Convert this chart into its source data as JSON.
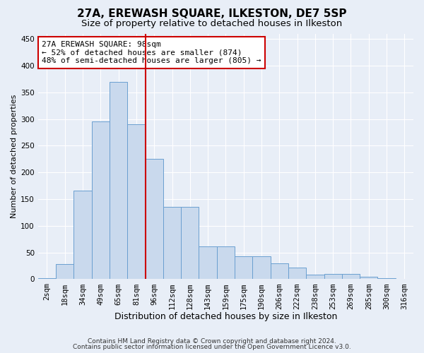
{
  "title1": "27A, EREWASH SQUARE, ILKESTON, DE7 5SP",
  "title2": "Size of property relative to detached houses in Ilkeston",
  "xlabel": "Distribution of detached houses by size in Ilkeston",
  "ylabel": "Number of detached properties",
  "footer1": "Contains HM Land Registry data © Crown copyright and database right 2024.",
  "footer2": "Contains public sector information licensed under the Open Government Licence v3.0.",
  "categories": [
    "2sqm",
    "18sqm",
    "34sqm",
    "49sqm",
    "65sqm",
    "81sqm",
    "96sqm",
    "112sqm",
    "128sqm",
    "143sqm",
    "159sqm",
    "175sqm",
    "190sqm",
    "206sqm",
    "222sqm",
    "238sqm",
    "253sqm",
    "269sqm",
    "285sqm",
    "300sqm",
    "316sqm"
  ],
  "values": [
    2,
    29,
    166,
    295,
    370,
    290,
    225,
    135,
    135,
    62,
    62,
    43,
    43,
    30,
    22,
    8,
    10,
    10,
    5,
    2,
    1
  ],
  "bar_color": "#c9d9ed",
  "bar_edge_color": "#6a9fd0",
  "vline_x_index": 6,
  "vline_color": "#cc0000",
  "annotation_line1": "27A EREWASH SQUARE: 98sqm",
  "annotation_line2": "← 52% of detached houses are smaller (874)",
  "annotation_line3": "48% of semi-detached houses are larger (805) →",
  "ylim": [
    0,
    460
  ],
  "yticks": [
    0,
    50,
    100,
    150,
    200,
    250,
    300,
    350,
    400,
    450
  ],
  "bg_color": "#e8eef7",
  "grid_color": "#ffffff",
  "title1_fontsize": 11,
  "title2_fontsize": 9.5,
  "xlabel_fontsize": 9,
  "ylabel_fontsize": 8,
  "tick_fontsize": 7.5,
  "annotation_fontsize": 8,
  "footer_fontsize": 6.5
}
